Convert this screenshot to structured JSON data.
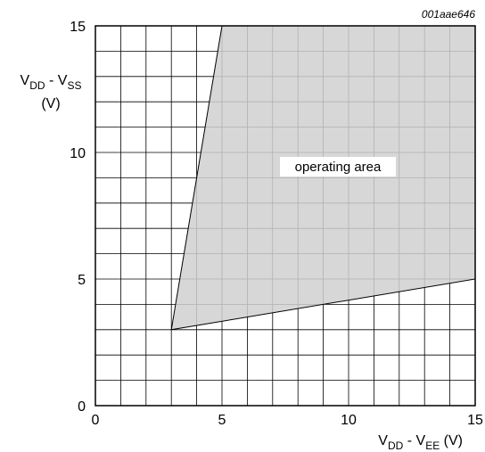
{
  "chart_data": {
    "type": "area",
    "figure_id": "001aae646",
    "xlim": [
      0,
      15
    ],
    "ylim": [
      0,
      15
    ],
    "x_ticks": [
      "0",
      "5",
      "10",
      "15"
    ],
    "y_ticks": [
      "0",
      "5",
      "10",
      "15"
    ],
    "grid": true,
    "grid_step": 1,
    "xlabel": {
      "main": "V",
      "sub1": "DD",
      "middle": " - V",
      "sub2": "EE",
      "unit": " (V)"
    },
    "ylabel": {
      "main": "V",
      "sub1": "DD",
      "middle": " - V",
      "sub2": "SS",
      "unit": "(V)"
    },
    "region": {
      "label": "operating area",
      "fill": "#d0d0d0",
      "vertices": [
        [
          3,
          3
        ],
        [
          5,
          15
        ],
        [
          15,
          15
        ],
        [
          15,
          5
        ]
      ]
    }
  }
}
